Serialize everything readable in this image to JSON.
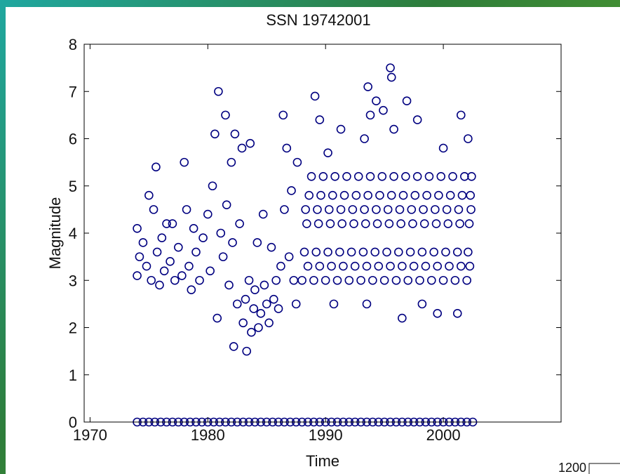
{
  "chart_data": {
    "type": "scatter",
    "title": "SSN 19742001",
    "x_label": "Time",
    "y_label": "Magnitude",
    "color": "#000080",
    "xlim": [
      1969.5,
      2010
    ],
    "ylim": [
      0,
      8
    ],
    "xticks": [
      1970,
      1980,
      1990,
      2000
    ],
    "yticks": [
      0,
      1,
      2,
      3,
      4,
      5,
      6,
      7,
      8
    ],
    "x": [
      1974.0,
      1974.0,
      1974.2,
      1974.5,
      1974.8,
      1975.0,
      1975.2,
      1975.4,
      1975.6,
      1975.7,
      1975.9,
      1976.1,
      1976.3,
      1976.5,
      1976.8,
      1977.0,
      1977.2,
      1977.5,
      1977.8,
      1978.0,
      1978.2,
      1978.4,
      1978.6,
      1978.8,
      1979.0,
      1979.3,
      1979.6,
      1980.0,
      1980.2,
      1980.4,
      1980.6,
      1980.8,
      1980.9,
      1981.1,
      1981.3,
      1981.5,
      1981.6,
      1981.8,
      1982.0,
      1982.1,
      1982.3,
      1982.2,
      1982.5,
      1982.7,
      1982.9,
      1983.0,
      1983.2,
      1983.3,
      1983.5,
      1983.6,
      1983.7,
      1983.9,
      1984.0,
      1984.2,
      1984.3,
      1984.5,
      1984.7,
      1984.8,
      1985.0,
      1985.2,
      1985.4,
      1985.6,
      1985.8,
      1986.0,
      1986.2,
      1986.4,
      1986.5,
      1986.7,
      1986.9,
      1987.1,
      1987.3,
      1987.5,
      1987.6,
      1989.1,
      1989.5,
      1991.3,
      1990.7,
      1993.6,
      1993.8,
      1994.3,
      1995.5,
      1995.6,
      1995.8,
      1996.9,
      1997.8,
      2001.5,
      2002.1,
      1993.5,
      1996.5,
      1999.5,
      2001.2,
      2000.0,
      1993.3,
      1994.9,
      1990.2,
      1998.2,
      1988.0,
      1988.2,
      1988.4,
      1988.6,
      1988.8,
      1988.5,
      1988.3,
      1989.0,
      1989.2,
      1989.4,
      1989.6,
      1989.8,
      1989.5,
      1989.3,
      1990.0,
      1990.2,
      1990.4,
      1990.6,
      1990.8,
      1990.5,
      1990.3,
      1991.0,
      1991.2,
      1991.4,
      1991.6,
      1991.8,
      1991.5,
      1991.3,
      1992.0,
      1992.2,
      1992.4,
      1992.6,
      1992.8,
      1992.5,
      1992.3,
      1993.0,
      1993.2,
      1993.4,
      1993.6,
      1993.8,
      1993.5,
      1993.3,
      1994.0,
      1994.2,
      1994.4,
      1994.6,
      1994.8,
      1994.5,
      1994.3,
      1995.0,
      1995.2,
      1995.4,
      1995.6,
      1995.8,
      1995.5,
      1995.3,
      1996.0,
      1996.2,
      1996.4,
      1996.6,
      1996.8,
      1996.5,
      1996.3,
      1997.0,
      1997.2,
      1997.4,
      1997.6,
      1997.8,
      1997.5,
      1997.3,
      1998.0,
      1998.2,
      1998.4,
      1998.6,
      1998.8,
      1998.5,
      1998.3,
      1999.0,
      1999.2,
      1999.4,
      1999.6,
      1999.8,
      1999.5,
      1999.3,
      2000.0,
      2000.2,
      2000.4,
      2000.6,
      2000.8,
      2000.5,
      2000.3,
      2001.0,
      2001.2,
      2001.4,
      2001.6,
      2001.8,
      2001.5,
      2001.3,
      2002.0,
      2002.1,
      2002.2,
      2002.3,
      2002.4,
      2002.25,
      2002.35,
      1974.0,
      1974.5,
      1975.0,
      1975.5,
      1976.0,
      1976.5,
      1977.0,
      1977.5,
      1978.0,
      1978.5,
      1979.0,
      1979.5,
      1980.0,
      1980.5,
      1981.0,
      1981.5,
      1982.0,
      1982.5,
      1983.0,
      1983.5,
      1984.0,
      1984.5,
      1985.0,
      1985.5,
      1986.0,
      1986.5,
      1987.0,
      1987.5,
      1988.0,
      1988.5,
      1989.0,
      1989.5,
      1990.0,
      1990.5,
      1991.0,
      1991.5,
      1992.0,
      1992.5,
      1993.0,
      1993.5,
      1994.0,
      1994.5,
      1995.0,
      1995.5,
      1996.0,
      1996.5,
      1997.0,
      1997.5,
      1998.0,
      1998.5,
      1999.0,
      1999.5,
      2000.0,
      2000.5,
      2001.0,
      2001.5,
      2002.0,
      2002.5
    ],
    "values": [
      3.1,
      4.1,
      3.5,
      3.8,
      3.3,
      4.8,
      3.0,
      4.5,
      5.4,
      3.6,
      2.9,
      3.9,
      3.2,
      4.2,
      3.4,
      4.2,
      3.0,
      3.7,
      3.1,
      5.5,
      4.5,
      3.3,
      2.8,
      4.1,
      3.6,
      3.0,
      3.9,
      4.4,
      3.2,
      5.0,
      6.1,
      2.2,
      7.0,
      4.0,
      3.5,
      6.5,
      4.6,
      2.9,
      5.5,
      3.8,
      6.1,
      1.6,
      2.5,
      4.2,
      5.8,
      2.1,
      2.6,
      1.5,
      3.0,
      5.9,
      1.9,
      2.4,
      2.8,
      3.8,
      2.0,
      2.3,
      4.4,
      2.9,
      2.5,
      2.1,
      3.7,
      2.6,
      3.0,
      2.4,
      3.3,
      6.5,
      4.5,
      5.8,
      3.5,
      4.9,
      3.0,
      2.5,
      5.5,
      6.9,
      6.4,
      6.2,
      2.5,
      7.1,
      6.5,
      6.8,
      7.5,
      7.3,
      6.2,
      6.8,
      6.4,
      6.5,
      6.0,
      2.5,
      2.2,
      2.3,
      2.3,
      5.8,
      6.0,
      6.6,
      5.7,
      2.5,
      3.0,
      3.6,
      4.2,
      4.8,
      5.2,
      3.3,
      4.5,
      3.0,
      3.6,
      4.2,
      4.8,
      5.2,
      3.3,
      4.5,
      3.0,
      3.6,
      4.2,
      4.8,
      5.2,
      3.3,
      4.5,
      3.0,
      3.6,
      4.2,
      4.8,
      5.2,
      3.3,
      4.5,
      3.0,
      3.6,
      4.2,
      4.8,
      5.2,
      3.3,
      4.5,
      3.0,
      3.6,
      4.2,
      4.8,
      5.2,
      3.3,
      4.5,
      3.0,
      3.6,
      4.2,
      4.8,
      5.2,
      3.3,
      4.5,
      3.0,
      3.6,
      4.2,
      4.8,
      5.2,
      3.3,
      4.5,
      3.0,
      3.6,
      4.2,
      4.8,
      5.2,
      3.3,
      4.5,
      3.0,
      3.6,
      4.2,
      4.8,
      5.2,
      3.3,
      4.5,
      3.0,
      3.6,
      4.2,
      4.8,
      5.2,
      3.3,
      4.5,
      3.0,
      3.6,
      4.2,
      4.8,
      5.2,
      3.3,
      4.5,
      3.0,
      3.6,
      4.2,
      4.8,
      5.2,
      3.3,
      4.5,
      3.0,
      3.6,
      4.2,
      4.8,
      5.2,
      3.3,
      4.5,
      3.0,
      3.6,
      4.2,
      4.8,
      5.2,
      3.3,
      4.5,
      0,
      0,
      0,
      0,
      0,
      0,
      0,
      0,
      0,
      0,
      0,
      0,
      0,
      0,
      0,
      0,
      0,
      0,
      0,
      0,
      0,
      0,
      0,
      0,
      0,
      0,
      0,
      0,
      0,
      0,
      0,
      0,
      0,
      0,
      0,
      0,
      0,
      0,
      0,
      0,
      0,
      0,
      0,
      0,
      0,
      0,
      0,
      0,
      0,
      0,
      0,
      0,
      0,
      0,
      0,
      0,
      0,
      0
    ]
  },
  "fragment_label": "1200"
}
